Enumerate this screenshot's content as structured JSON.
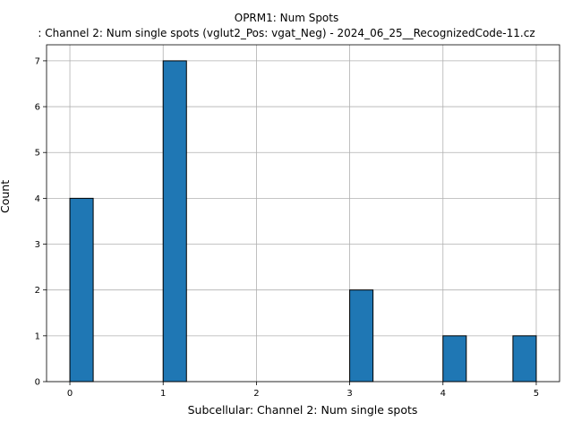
{
  "chart_data": {
    "type": "bar",
    "title": "OPRM1: Num Spots",
    "subtitle": ": Channel 2: Num single spots (vglut2_Pos: vgat_Neg) - 2024_06_25__RecognizedCode-11.cz",
    "xlabel": "Subcellular: Channel 2: Num single spots",
    "ylabel": "Count",
    "xlim": [
      -0.25,
      5.25
    ],
    "ylim": [
      0,
      7.35
    ],
    "xticks": [
      0,
      1,
      2,
      3,
      4,
      5
    ],
    "yticks": [
      0,
      1,
      2,
      3,
      4,
      5,
      6,
      7
    ],
    "grid": true,
    "bin_width": 0.25,
    "bins": [
      {
        "start": 0.0,
        "end": 0.25,
        "count": 4
      },
      {
        "start": 1.0,
        "end": 1.25,
        "count": 7
      },
      {
        "start": 3.0,
        "end": 3.25,
        "count": 2
      },
      {
        "start": 4.0,
        "end": 4.25,
        "count": 1
      },
      {
        "start": 4.75,
        "end": 5.0,
        "count": 1
      }
    ],
    "colors": {
      "bar": "#1f77b4",
      "edge": "#000000",
      "grid": "#b0b0b0"
    }
  }
}
